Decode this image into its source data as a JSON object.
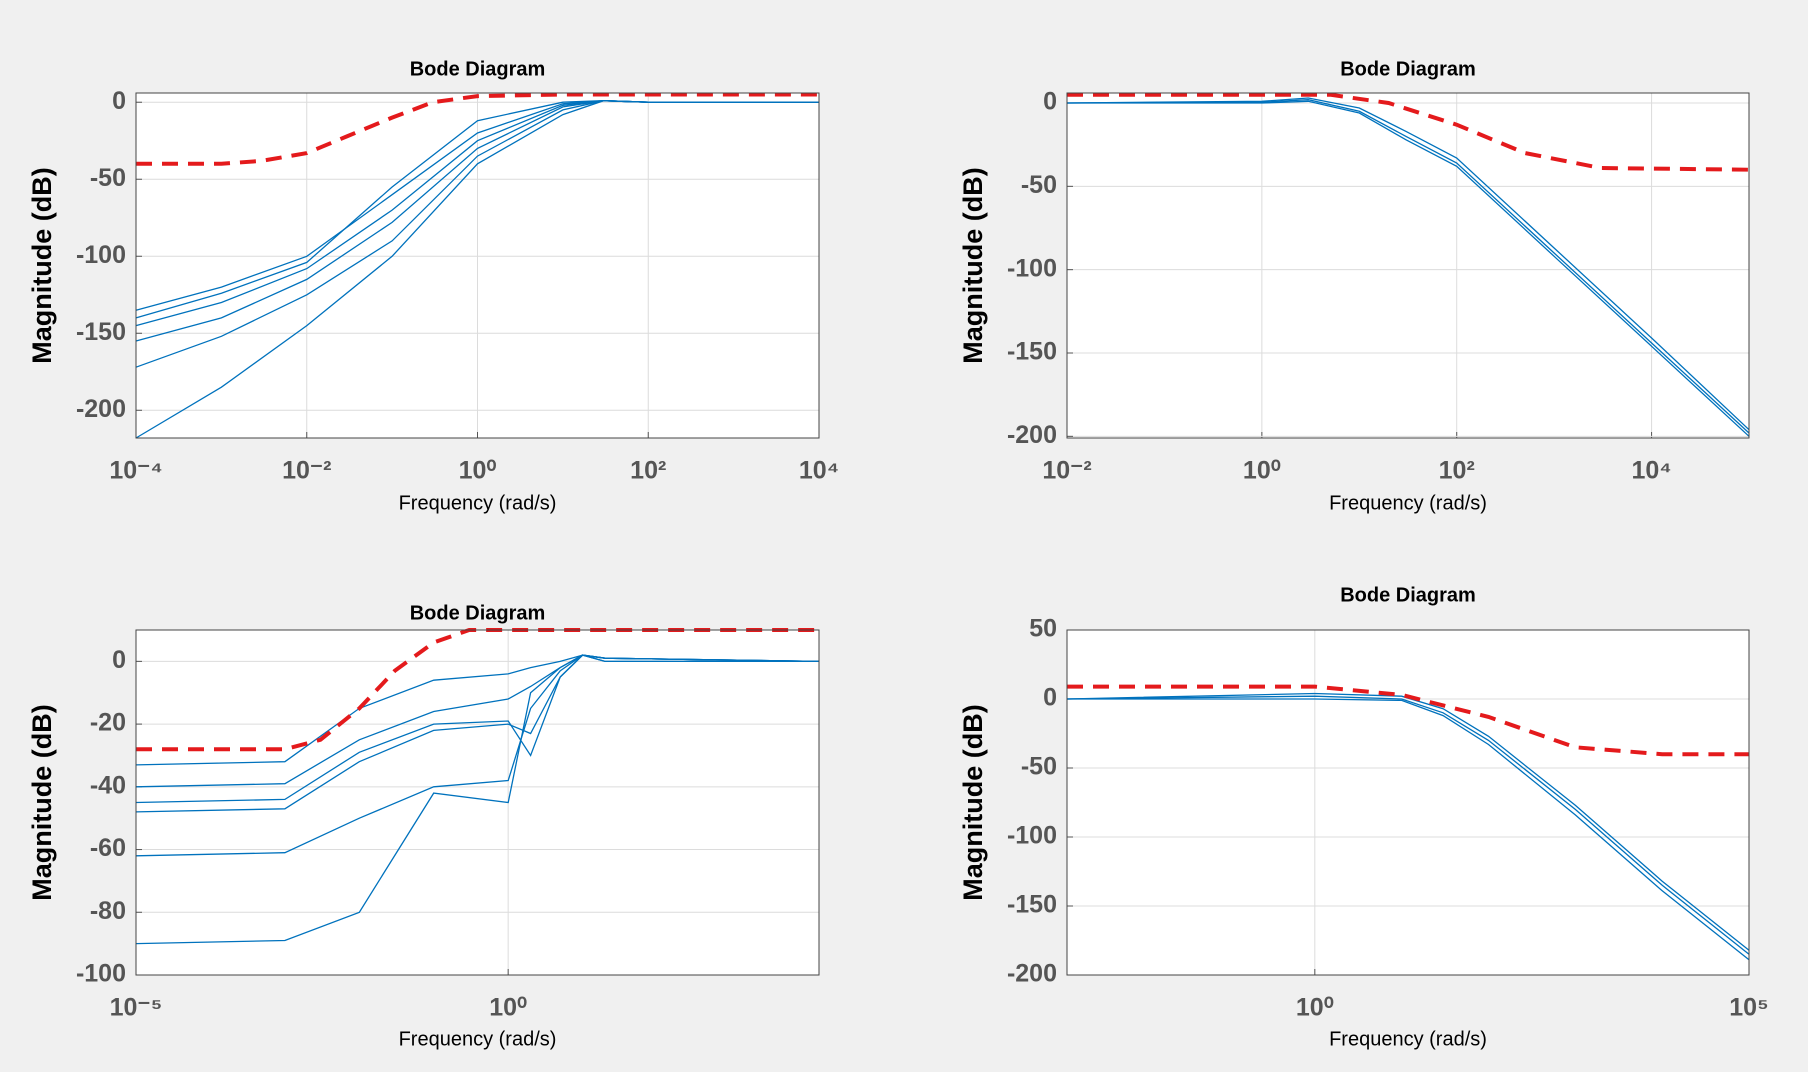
{
  "chart_data": [
    {
      "type": "line",
      "title": "Bode Diagram",
      "xlabel": "Frequency  (rad/s)",
      "ylabel": "Magnitude (dB)",
      "xscale": "log",
      "grid": true,
      "xlim": [
        0.0001,
        10000
      ],
      "xticks": [
        {
          "value": 0.0001,
          "label": "10⁻⁴"
        },
        {
          "value": 0.01,
          "label": "10⁻²"
        },
        {
          "value": 1,
          "label": "10⁰"
        },
        {
          "value": 100,
          "label": "10²"
        },
        {
          "value": 10000,
          "label": "10⁴"
        }
      ],
      "ylim": [
        -218,
        6
      ],
      "yticks": [
        -200,
        -150,
        -100,
        -50,
        0
      ],
      "series": [
        {
          "color": "#0072bd",
          "x": [
            0.0001,
            0.001,
            0.01,
            0.1,
            1,
            10,
            30,
            100,
            10000
          ],
          "values": [
            -135,
            -120,
            -100,
            -60,
            -20,
            -1,
            1,
            0,
            0
          ]
        },
        {
          "color": "#0072bd",
          "x": [
            0.0001,
            0.001,
            0.01,
            0.1,
            1,
            10,
            30,
            100,
            10000
          ],
          "values": [
            -140,
            -124,
            -104,
            -55,
            -12,
            0,
            1,
            0,
            0
          ]
        },
        {
          "color": "#0072bd",
          "x": [
            0.0001,
            0.001,
            0.01,
            0.1,
            1,
            10,
            30,
            100,
            10000
          ],
          "values": [
            -145,
            -130,
            -108,
            -70,
            -25,
            -2,
            1,
            0,
            0
          ]
        },
        {
          "color": "#0072bd",
          "x": [
            0.0001,
            0.001,
            0.01,
            0.1,
            1,
            10,
            30,
            100,
            10000
          ],
          "values": [
            -155,
            -140,
            -115,
            -78,
            -30,
            -3,
            1,
            0,
            0
          ]
        },
        {
          "color": "#0072bd",
          "x": [
            0.0001,
            0.001,
            0.01,
            0.1,
            1,
            10,
            30,
            100,
            10000
          ],
          "values": [
            -172,
            -152,
            -125,
            -90,
            -35,
            -5,
            1,
            0,
            0
          ]
        },
        {
          "color": "#0072bd",
          "x": [
            0.0001,
            0.001,
            0.01,
            0.1,
            1,
            10,
            30,
            100,
            10000
          ],
          "values": [
            -218,
            -185,
            -145,
            -100,
            -40,
            -8,
            1,
            0,
            0
          ]
        },
        {
          "color": "#e41a1c",
          "style": "dashed",
          "x": [
            0.0001,
            0.001,
            0.003,
            0.01,
            0.03,
            0.1,
            0.3,
            1,
            10,
            10000
          ],
          "values": [
            -40,
            -40,
            -38,
            -33,
            -22,
            -10,
            0,
            4,
            5,
            5
          ]
        }
      ]
    },
    {
      "type": "line",
      "title": "Bode Diagram",
      "xlabel": "Frequency  (rad/s)",
      "ylabel": "Magnitude (dB)",
      "xscale": "log",
      "grid": true,
      "xlim": [
        0.01,
        100000
      ],
      "xticks": [
        {
          "value": 0.01,
          "label": "10⁻²"
        },
        {
          "value": 1,
          "label": "10⁰"
        },
        {
          "value": 100,
          "label": "10²"
        },
        {
          "value": 10000,
          "label": "10⁴"
        }
      ],
      "ylim": [
        -201,
        6
      ],
      "yticks": [
        -200,
        -150,
        -100,
        -50,
        0
      ],
      "series": [
        {
          "color": "#0072bd",
          "x": [
            0.01,
            1,
            3,
            10,
            30,
            100,
            1000,
            10000,
            100000
          ],
          "values": [
            0,
            0.5,
            2,
            -5,
            -20,
            -36,
            -90,
            -144,
            -198
          ]
        },
        {
          "color": "#0072bd",
          "x": [
            0.01,
            1,
            3,
            10,
            30,
            100,
            1000,
            10000,
            100000
          ],
          "values": [
            0,
            1,
            3,
            -3,
            -17,
            -33,
            -87,
            -141,
            -196
          ]
        },
        {
          "color": "#0072bd",
          "x": [
            0.01,
            1,
            3,
            10,
            30,
            100,
            1000,
            10000,
            100000
          ],
          "values": [
            0,
            0,
            1,
            -6,
            -22,
            -38,
            -92,
            -146,
            -200
          ]
        },
        {
          "color": "#e41a1c",
          "style": "dashed",
          "x": [
            0.01,
            1,
            5,
            20,
            100,
            500,
            3000,
            100000
          ],
          "values": [
            5,
            5,
            5,
            0,
            -13,
            -30,
            -39,
            -40
          ]
        }
      ]
    },
    {
      "type": "line",
      "title": "Bode Diagram",
      "xlabel": "Frequency  (rad/s)",
      "ylabel": "Magnitude (dB)",
      "xscale": "log",
      "grid": true,
      "xlim": [
        1e-05,
        15000
      ],
      "xticks": [
        {
          "value": 1e-05,
          "label": "10⁻⁵"
        },
        {
          "value": 1,
          "label": "10⁰"
        }
      ],
      "ylim": [
        -100,
        10
      ],
      "yticks": [
        -100,
        -80,
        -60,
        -40,
        -20,
        0
      ],
      "series": [
        {
          "color": "#0072bd",
          "x": [
            1e-05,
            0.001,
            0.01,
            0.1,
            1,
            2,
            5,
            10,
            20,
            15000
          ],
          "values": [
            -33,
            -32,
            -15,
            -6,
            -4,
            -2,
            0,
            2,
            1,
            0
          ]
        },
        {
          "color": "#0072bd",
          "x": [
            1e-05,
            0.001,
            0.01,
            0.1,
            1,
            2,
            5,
            10,
            20,
            15000
          ],
          "values": [
            -40,
            -39,
            -25,
            -16,
            -12,
            -8,
            -2,
            2,
            1,
            0
          ]
        },
        {
          "color": "#0072bd",
          "x": [
            1e-05,
            0.001,
            0.01,
            0.1,
            1,
            2,
            5,
            10,
            20,
            15000
          ],
          "values": [
            -45,
            -44,
            -29,
            -20,
            -19,
            -30,
            -5,
            2,
            1,
            0
          ]
        },
        {
          "color": "#0072bd",
          "x": [
            1e-05,
            0.001,
            0.01,
            0.1,
            1,
            2,
            5,
            10,
            20,
            15000
          ],
          "values": [
            -48,
            -47,
            -32,
            -22,
            -20,
            -23,
            -5,
            2,
            1,
            0
          ]
        },
        {
          "color": "#0072bd",
          "x": [
            1e-05,
            0.001,
            0.01,
            0.1,
            1,
            2,
            5,
            10,
            20,
            15000
          ],
          "values": [
            -62,
            -61,
            -50,
            -40,
            -38,
            -15,
            -3,
            2,
            0,
            0
          ]
        },
        {
          "color": "#0072bd",
          "x": [
            1e-05,
            0.001,
            0.01,
            0.1,
            1,
            2,
            5,
            10,
            20,
            15000
          ],
          "values": [
            -90,
            -89,
            -80,
            -42,
            -45,
            -10,
            -2,
            2,
            0,
            0
          ]
        },
        {
          "color": "#e41a1c",
          "style": "dashed",
          "x": [
            1e-05,
            0.001,
            0.003,
            0.01,
            0.03,
            0.1,
            0.3,
            15000
          ],
          "values": [
            -28,
            -28,
            -25,
            -15,
            -3,
            6,
            10,
            10
          ]
        }
      ]
    },
    {
      "type": "line",
      "title": "Bode Diagram",
      "xlabel": "Frequency  (rad/s)",
      "ylabel": "Magnitude (dB)",
      "xscale": "log",
      "grid": true,
      "xlim": [
        0.0014,
        100000
      ],
      "xticks": [
        {
          "value": 1,
          "label": "10⁰"
        },
        {
          "value": 100000,
          "label": "10⁵"
        }
      ],
      "ylim": [
        -200,
        50
      ],
      "yticks": [
        -200,
        -150,
        -100,
        -50,
        0,
        50
      ],
      "series": [
        {
          "color": "#0072bd",
          "x": [
            0.0014,
            1,
            10,
            30,
            100,
            1000,
            10000,
            100000
          ],
          "values": [
            0,
            2,
            0,
            -10,
            -30,
            -80,
            -135,
            -185
          ]
        },
        {
          "color": "#0072bd",
          "x": [
            0.0014,
            1,
            10,
            30,
            100,
            1000,
            10000,
            100000
          ],
          "values": [
            0,
            4,
            2,
            -7,
            -27,
            -77,
            -132,
            -182
          ]
        },
        {
          "color": "#0072bd",
          "x": [
            0.0014,
            1,
            10,
            30,
            100,
            1000,
            10000,
            100000
          ],
          "values": [
            0,
            0,
            -1,
            -12,
            -33,
            -84,
            -139,
            -189
          ]
        },
        {
          "color": "#e41a1c",
          "style": "dashed",
          "x": [
            0.0014,
            1,
            10,
            100,
            1000,
            10000,
            100000
          ],
          "values": [
            9,
            9,
            3,
            -13,
            -35,
            -40,
            -40
          ]
        }
      ]
    }
  ]
}
